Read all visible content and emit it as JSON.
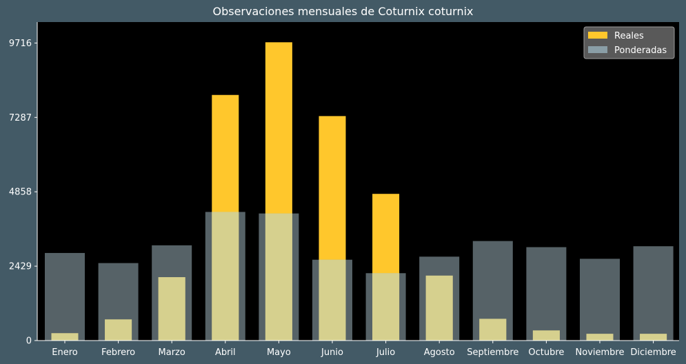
{
  "chart_data": {
    "type": "bar",
    "title": "Observaciones mensuales de Coturnix coturnix",
    "xlabel": "",
    "ylabel": "",
    "categories": [
      "Enero",
      "Febrero",
      "Marzo",
      "Abril",
      "Mayo",
      "Junio",
      "Julio",
      "Agosto",
      "Septiembre",
      "Octubre",
      "Noviembre",
      "Diciembre"
    ],
    "series": [
      {
        "name": "Reales",
        "color": "#ffc72c",
        "values": [
          240,
          690,
          2070,
          8020,
          9740,
          7330,
          4790,
          2120,
          710,
          330,
          220,
          220
        ]
      },
      {
        "name": "Ponderadas",
        "color": "#8a9ea6",
        "values": [
          2860,
          2530,
          3110,
          4200,
          4150,
          2640,
          2200,
          2740,
          3250,
          3050,
          2670,
          3080
        ]
      }
    ],
    "ylim": [
      0,
      10400
    ],
    "yticks": [
      0,
      2429,
      4858,
      7287,
      9716
    ],
    "grid": false,
    "legend": "top-right",
    "plot_background": "#000000",
    "figure_background": "#435a66",
    "overlap_color": "#d6d08e"
  }
}
